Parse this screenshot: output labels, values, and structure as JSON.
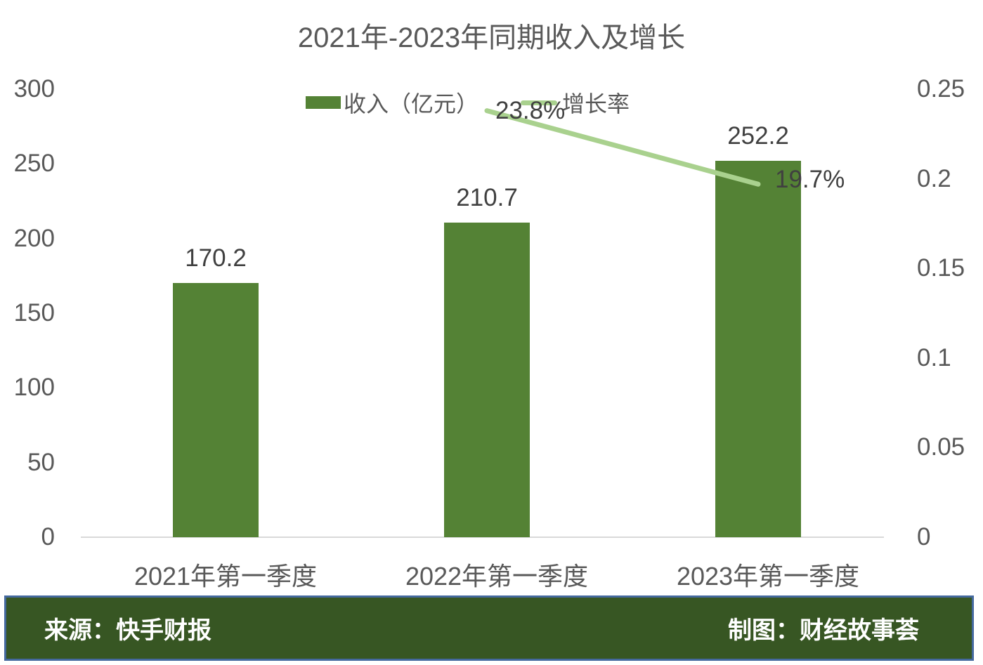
{
  "chart_data": {
    "type": "bar",
    "title": "2021年-2023年同期收入及增长",
    "categories": [
      "2021年第一季度",
      "2022年第一季度",
      "2023年第一季度"
    ],
    "series": [
      {
        "name": "收入（亿元）",
        "type": "bar",
        "axis": "left",
        "color": "#548235",
        "values": [
          170.2,
          210.7,
          252.2
        ],
        "labels": [
          "170.2",
          "210.7",
          "252.2"
        ]
      },
      {
        "name": "增长率",
        "type": "line",
        "axis": "right",
        "color": "#a9d18e",
        "values": [
          null,
          0.238,
          0.197
        ],
        "labels": [
          null,
          "23.8%",
          "19.7%"
        ]
      }
    ],
    "left_axis": {
      "min": 0,
      "max": 300,
      "ticks": [
        "300",
        "250",
        "200",
        "150",
        "100",
        "50",
        "0"
      ]
    },
    "right_axis": {
      "min": 0,
      "max": 0.25,
      "ticks": [
        "0.25",
        "0.2",
        "0.15",
        "0.1",
        "0.05",
        "0"
      ]
    },
    "grid": false,
    "legend_position": "top-center"
  },
  "footer": {
    "source": "来源：快手财报",
    "credit": "制图：财经故事荟"
  },
  "colors": {
    "bar_green": "#548235",
    "line_green": "#a9d18e",
    "footer_bg": "#375623",
    "footer_border": "#44699e",
    "title_text": "#595959",
    "axis_text": "#595959",
    "value_text": "#404040",
    "axis_line": "#d9d9d9",
    "footer_text": "#ffffff"
  }
}
